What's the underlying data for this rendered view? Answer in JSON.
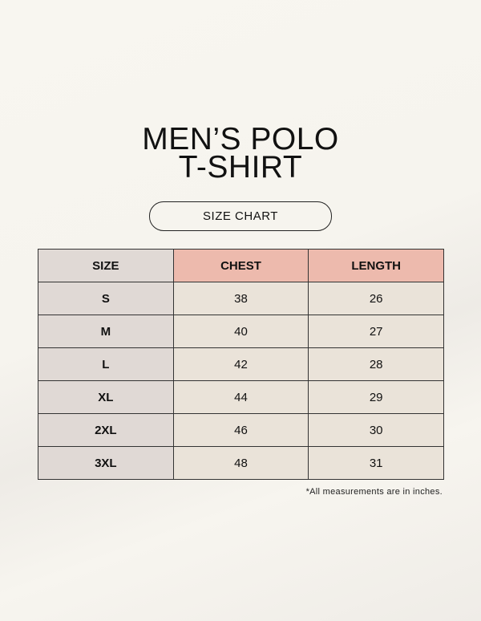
{
  "title_line1": "MEN’S POLO",
  "title_line2": "T-SHIRT",
  "subtitle": "SIZE CHART",
  "table": {
    "headers": [
      "SIZE",
      "CHEST",
      "LENGTH"
    ],
    "rows": [
      [
        "S",
        "38",
        "26"
      ],
      [
        "M",
        "40",
        "27"
      ],
      [
        "L",
        "42",
        "28"
      ],
      [
        "XL",
        "44",
        "29"
      ],
      [
        "2XL",
        "46",
        "30"
      ],
      [
        "3XL",
        "48",
        "31"
      ]
    ]
  },
  "footnote": "*All measurements are in inches.",
  "colors": {
    "header_size": "#e0d9d5",
    "header_measure": "#edbaad",
    "cell": "#eae3d9"
  }
}
